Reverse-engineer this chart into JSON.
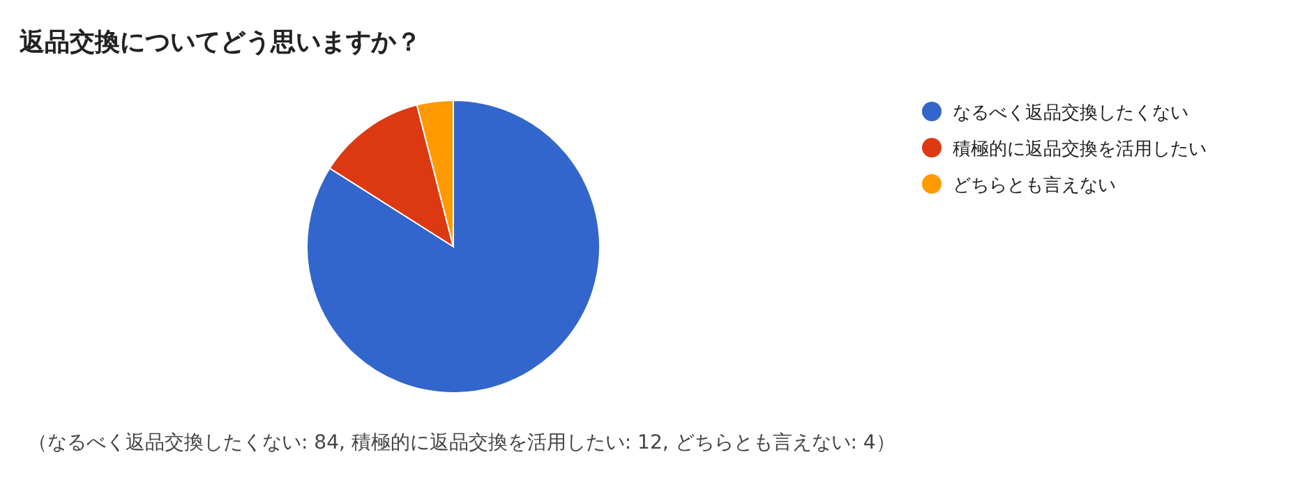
{
  "chart_data": {
    "type": "pie",
    "title": "返品交換についてどう思いますか？",
    "categories": [
      "なるべく返品交換したくない",
      "積極的に返品交換を活用したい",
      "どちらとも言えない"
    ],
    "values": [
      84,
      12,
      4
    ],
    "colors": [
      "#3366cc",
      "#dc3912",
      "#ff9900"
    ],
    "legend": "right",
    "annotations": [
      "（なるべく返品交換したくない: 84, 積極的に返品交換を活用したい: 12, どちらとも言えない: 4）"
    ]
  }
}
